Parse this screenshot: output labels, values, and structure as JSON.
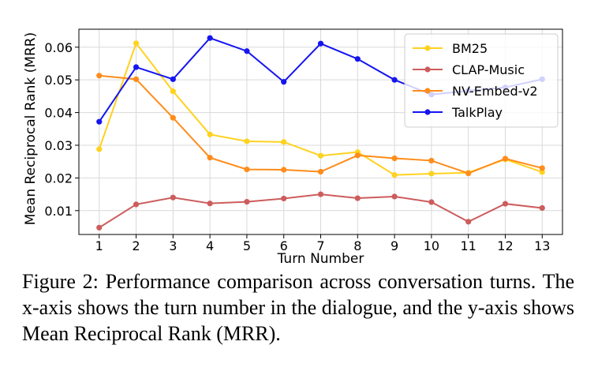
{
  "caption": "Figure 2: Performance comparison across conversation turns. The x-axis shows the turn number in the dialogue, and the y-axis shows Mean Reciprocal Rank (MRR).",
  "chart_data": {
    "type": "line",
    "xlabel": "Turn Number",
    "ylabel": "Mean Reciprocal Rank (MRR)",
    "x": [
      1,
      2,
      3,
      4,
      5,
      6,
      7,
      8,
      9,
      10,
      11,
      12,
      13
    ],
    "xticks": [
      "1",
      "2",
      "3",
      "4",
      "5",
      "6",
      "7",
      "8",
      "9",
      "10",
      "11",
      "12",
      "13"
    ],
    "yticks": [
      "0.01",
      "0.02",
      "0.03",
      "0.04",
      "0.05",
      "0.06"
    ],
    "ylim": [
      0.0027,
      0.0655
    ],
    "xlim": [
      0.45,
      13.55
    ],
    "grid": true,
    "legend_position": "top-right",
    "series": [
      {
        "name": "BM25",
        "color": "#ffd21f",
        "values": [
          0.0288,
          0.0612,
          0.0465,
          0.0333,
          0.0312,
          0.031,
          0.0268,
          0.0279,
          0.0209,
          0.0213,
          0.0216,
          0.0257,
          0.0218
        ]
      },
      {
        "name": "CLAP-Music",
        "color": "#cd5c5c",
        "values": [
          0.0048,
          0.0119,
          0.014,
          0.0122,
          0.0127,
          0.0137,
          0.015,
          0.0138,
          0.0143,
          0.0126,
          0.0066,
          0.0121,
          0.0108
        ]
      },
      {
        "name": "NV-Embed-v2",
        "color": "#ff8c1a",
        "values": [
          0.0513,
          0.0502,
          0.0384,
          0.0262,
          0.0226,
          0.0225,
          0.0219,
          0.0269,
          0.026,
          0.0253,
          0.0214,
          0.0259,
          0.023
        ]
      },
      {
        "name": "TalkPlay",
        "color": "#1515f0",
        "values": [
          0.0372,
          0.0539,
          0.0502,
          0.0628,
          0.0588,
          0.0494,
          0.0611,
          0.0564,
          0.05,
          0.0455,
          0.0467,
          0.0477,
          0.0502
        ]
      }
    ]
  }
}
